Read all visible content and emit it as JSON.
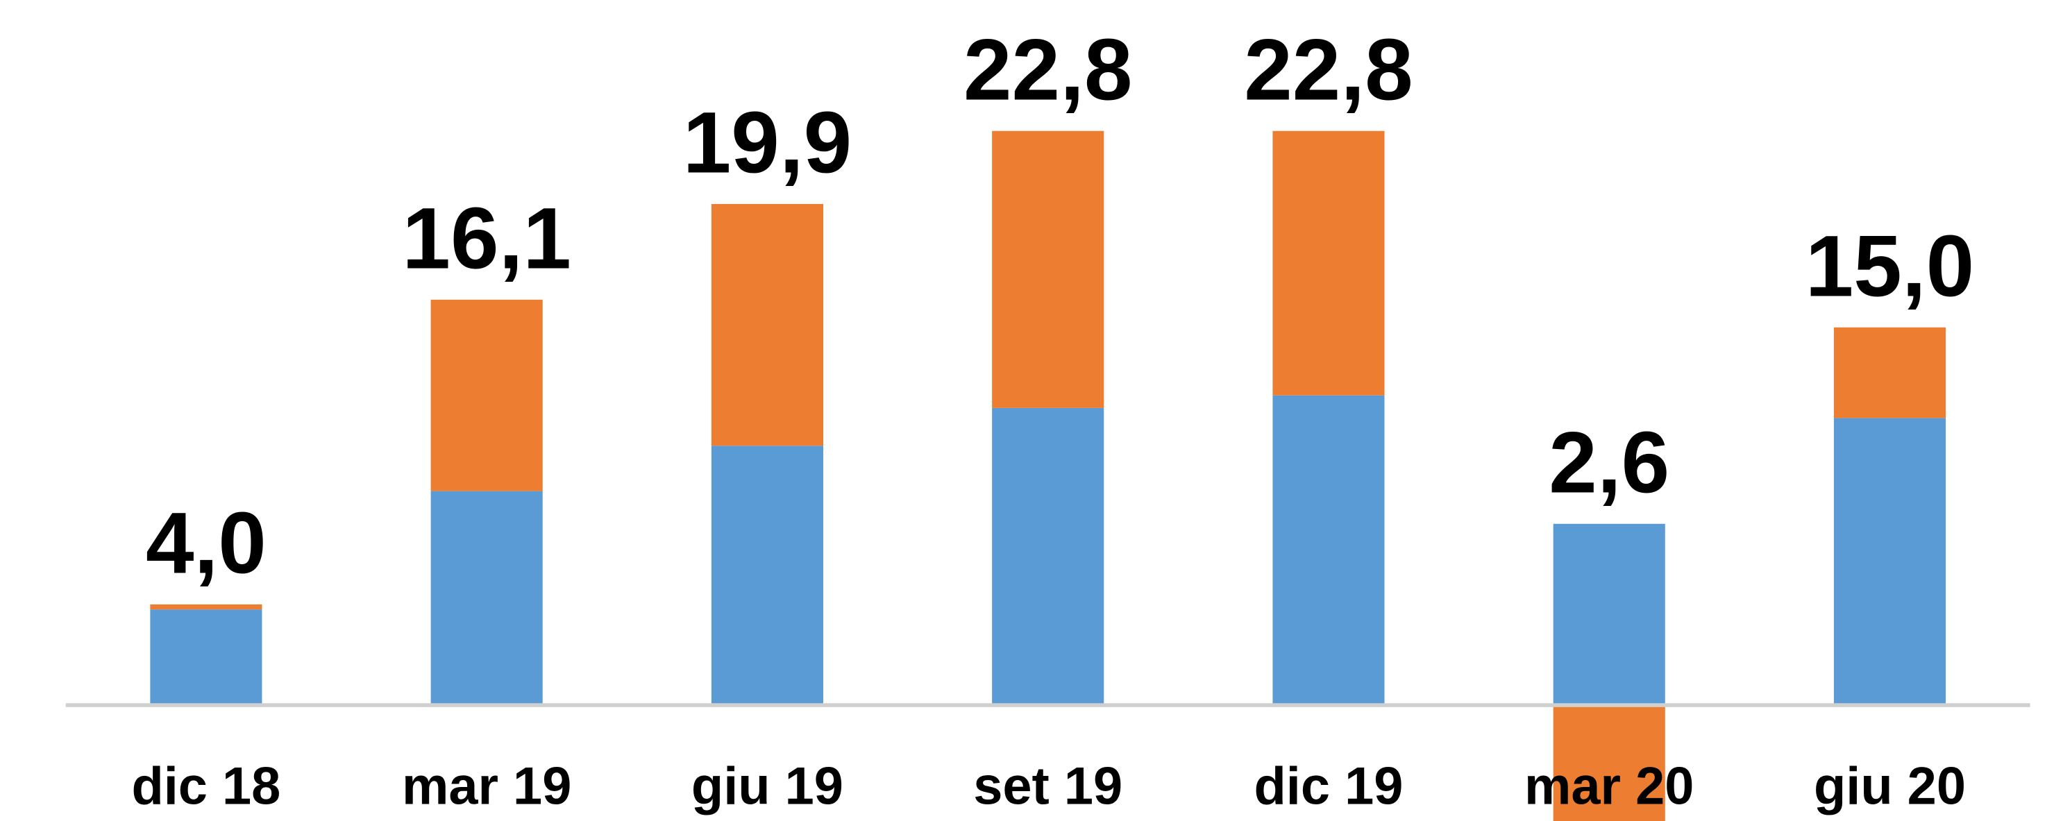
{
  "chart_data": {
    "type": "stacked_bar",
    "categories": [
      "dic 18",
      "mar 19",
      "giu 19",
      "set 19",
      "dic 19",
      "mar 20",
      "giu 20"
    ],
    "series": [
      {
        "color": "#5b9bd5",
        "values": [
          3.8,
          8.5,
          10.3,
          11.8,
          12.3,
          7.2,
          11.4
        ]
      },
      {
        "color": "#ed7d31",
        "values": [
          0.2,
          7.6,
          9.6,
          11.0,
          10.5,
          -4.6,
          3.6
        ]
      }
    ],
    "totals": [
      4.0,
      16.1,
      19.9,
      22.8,
      22.8,
      2.6,
      15.0
    ],
    "total_labels": [
      "4,0",
      "16,1",
      "19,9",
      "22,8",
      "22,8",
      "2,6",
      "15,0"
    ],
    "ylim": [
      -4.6,
      28
    ]
  }
}
